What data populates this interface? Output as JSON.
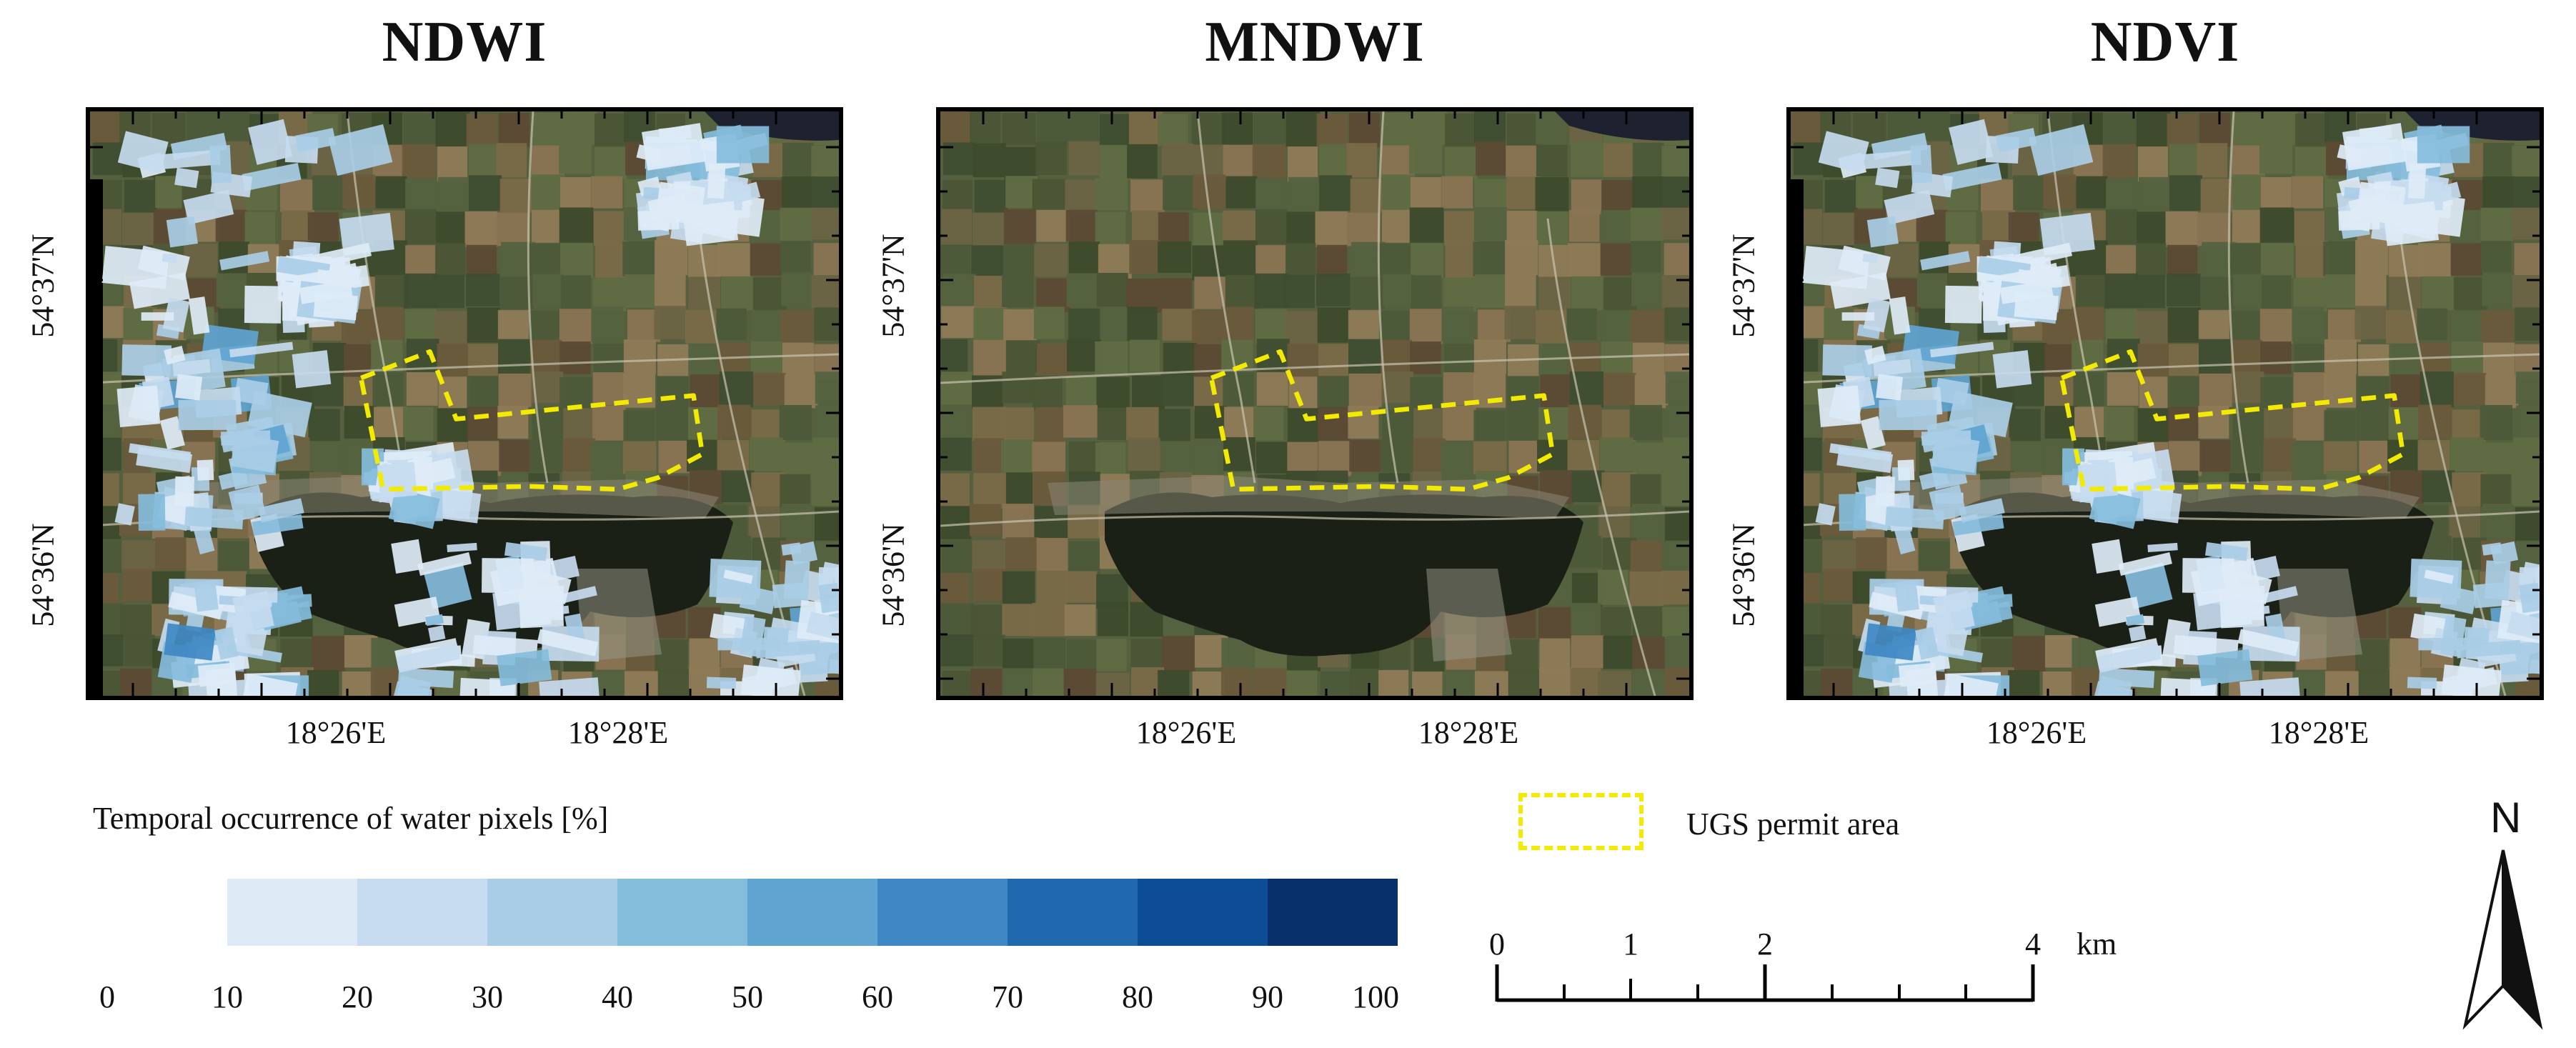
{
  "panels": [
    {
      "title": "NDWI",
      "water_overlay": true
    },
    {
      "title": "MNDWI",
      "water_overlay": false
    },
    {
      "title": "NDVI",
      "water_overlay": true
    }
  ],
  "axes": {
    "lat_labels": [
      "54°37'N",
      "54°36'N"
    ],
    "lon_labels": [
      "18°26'E",
      "18°28'E"
    ]
  },
  "legend": {
    "title": "Temporal occurrence of water pixels [%]",
    "ticks": [
      "0",
      "10",
      "20",
      "30",
      "40",
      "50",
      "60",
      "70",
      "80",
      "90",
      "100"
    ],
    "colors": [
      "#deebf7",
      "#c6dbef",
      "#a9cde6",
      "#84bcdb",
      "#60a4d1",
      "#3f88c3",
      "#2069af",
      "#0c4d95",
      "#08306b"
    ]
  },
  "ugs": {
    "label": "UGS permit area",
    "color": "#f2ea00"
  },
  "scale_bar": {
    "labels": [
      "0",
      "1",
      "2",
      "4"
    ],
    "unit": "km"
  },
  "north": {
    "label": "N"
  }
}
